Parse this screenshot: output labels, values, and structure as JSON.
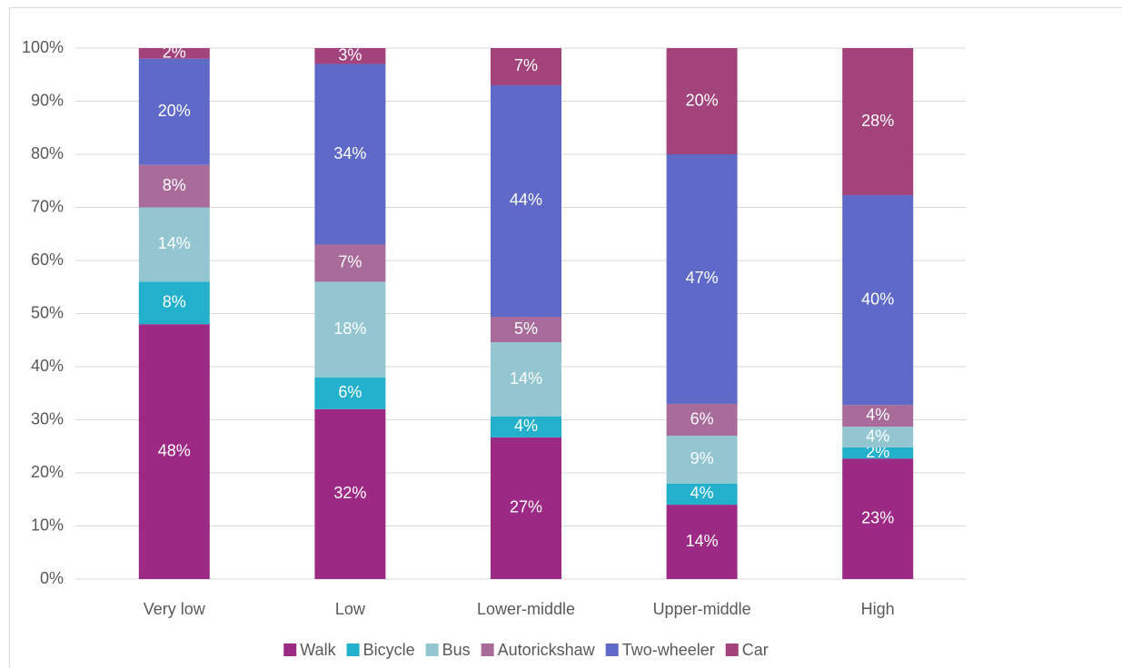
{
  "chart_data": {
    "type": "stacked_bar",
    "categories": [
      "Very low",
      "Low",
      "Lower-middle",
      "Upper-middle",
      "High"
    ],
    "series": [
      {
        "name": "Walk",
        "color": "#9c2a84",
        "values": [
          48,
          32,
          26.7,
          14,
          22.7
        ],
        "value_labels": [
          "48%",
          "32%",
          "27%",
          "14%",
          "23%"
        ]
      },
      {
        "name": "Bicycle",
        "color": "#22b0cc",
        "values": [
          8,
          6,
          3.9,
          4,
          2.1
        ],
        "value_labels": [
          "8%",
          "6%",
          "4%",
          "4%",
          "2%"
        ]
      },
      {
        "name": "Bus",
        "color": "#93c6d0",
        "values": [
          14,
          18,
          14,
          9,
          3.9
        ],
        "value_labels": [
          "14%",
          "18%",
          "14%",
          "9%",
          "4%"
        ]
      },
      {
        "name": "Autorickshaw",
        "color": "#a96b99",
        "values": [
          8,
          7,
          4.8,
          6,
          4.1
        ],
        "value_labels": [
          "8%",
          "7%",
          "5%",
          "6%",
          "4%"
        ]
      },
      {
        "name": "Two-wheeler",
        "color": "#5f6ac8",
        "values": [
          20,
          34,
          43.6,
          47,
          39.5
        ],
        "value_labels": [
          "20%",
          "34%",
          "44%",
          "47%",
          "40%"
        ]
      },
      {
        "name": "Car",
        "color": "#a3437c",
        "values": [
          2,
          3,
          7,
          20,
          27.7
        ],
        "value_labels": [
          "2%",
          "3%",
          "7%",
          "20%",
          "28%"
        ]
      }
    ],
    "ylim": [
      0,
      100
    ],
    "yticks": [
      {
        "value": 0,
        "label": "0%"
      },
      {
        "value": 10,
        "label": "10%"
      },
      {
        "value": 20,
        "label": "20%"
      },
      {
        "value": 30,
        "label": "30%"
      },
      {
        "value": 40,
        "label": "40%"
      },
      {
        "value": 50,
        "label": "50%"
      },
      {
        "value": 60,
        "label": "60%"
      },
      {
        "value": 70,
        "label": "70%"
      },
      {
        "value": 80,
        "label": "80%"
      },
      {
        "value": 90,
        "label": "90%"
      },
      {
        "value": 100,
        "label": "100%"
      }
    ],
    "grid": true,
    "legend": "bottom"
  }
}
